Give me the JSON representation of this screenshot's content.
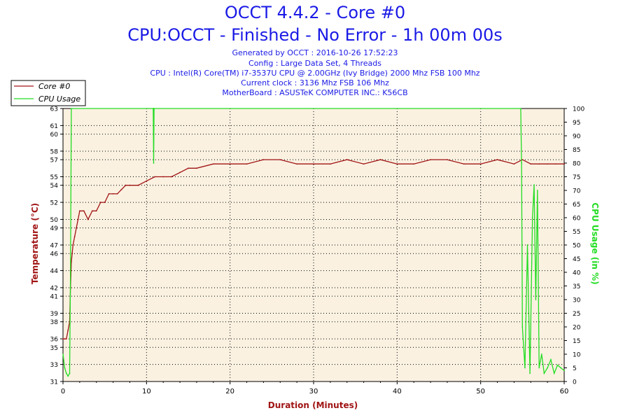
{
  "chart_data": {
    "type": "line",
    "title": "OCCT 4.4.2 - Core #0",
    "subtitle": "CPU:OCCT - Finished - No Error - 1h 00m 00s",
    "info_lines": [
      "Generated by OCCT : 2016-10-26 17:52:23",
      "Config : Large Data Set, 4 Threads",
      "CPU : Intel(R) Core(TM) i7-3537U CPU @ 2.00GHz (Ivy Bridge) 2000 Mhz FSB 100 Mhz",
      "Current clock : 3136 Mhz FSB 106 Mhz",
      "MotherBoard : ASUSTeK COMPUTER INC.: K56CB"
    ],
    "xlabel": "Duration (Minutes)",
    "ylabel": "Temperature (°C)",
    "y2label": "CPU Usage (in %)",
    "xlim": [
      0,
      60
    ],
    "ylim": [
      31,
      63
    ],
    "y2lim": [
      0,
      100
    ],
    "xticks": [
      0,
      10,
      20,
      30,
      40,
      50,
      60
    ],
    "yticks": [
      31,
      33,
      35,
      36,
      38,
      39,
      41,
      42,
      44,
      46,
      47,
      49,
      50,
      52,
      54,
      55,
      57,
      58,
      60,
      61,
      63
    ],
    "y2ticks": [
      0,
      5,
      10,
      15,
      20,
      25,
      30,
      35,
      40,
      45,
      50,
      55,
      60,
      65,
      70,
      75,
      80,
      85,
      90,
      95,
      100
    ],
    "grid": true,
    "legend_position": "top-left",
    "colors": {
      "temperature": "#a01414",
      "cpu_usage": "#22dd22",
      "plot_bg": "#fbf1e1",
      "title": "#1a1ae6",
      "axis_label": "#a01414"
    },
    "series": [
      {
        "name": "Core #0",
        "axis": "left",
        "x": [
          0,
          0.2,
          0.4,
          0.6,
          0.8,
          0.9,
          1.0,
          1.1,
          1.2,
          1.4,
          1.6,
          1.8,
          2.0,
          2.5,
          3.0,
          3.5,
          4.0,
          4.5,
          5.0,
          5.5,
          6.0,
          6.5,
          7.0,
          7.5,
          8.0,
          9.0,
          10.0,
          11.0,
          12.0,
          13.0,
          14.0,
          15.0,
          16.0,
          18.0,
          20.0,
          22.0,
          24.0,
          26.0,
          28.0,
          30.0,
          32.0,
          34.0,
          36.0,
          38.0,
          40.0,
          42.0,
          44.0,
          46.0,
          48.0,
          50.0,
          52.0,
          54.0,
          55.0,
          56.0,
          57.0,
          58.0,
          59.0,
          60.0
        ],
        "y": [
          36,
          36,
          36,
          37,
          38,
          42,
          45,
          46,
          47,
          48,
          49,
          50,
          51,
          51,
          50,
          51,
          51,
          52,
          52,
          53,
          53,
          53,
          53.5,
          54,
          54,
          54,
          54.5,
          55,
          55,
          55,
          55.5,
          56,
          56,
          56.5,
          56.5,
          56.5,
          57,
          57,
          56.5,
          56.5,
          56.5,
          57,
          56.5,
          57,
          56.5,
          56.5,
          57,
          57,
          56.5,
          56.5,
          57,
          56.5,
          57,
          56.5,
          56.5,
          56.5,
          56.5,
          56.5
        ]
      },
      {
        "name": "CPU Usage",
        "axis": "right",
        "x": [
          0,
          0.2,
          0.4,
          0.6,
          0.8,
          0.9,
          1.0,
          10.8,
          10.85,
          10.9,
          54.8,
          54.9,
          55.0,
          55.3,
          55.6,
          55.9,
          56.2,
          56.4,
          56.6,
          56.8,
          57.0,
          57.3,
          57.6,
          58.0,
          58.4,
          58.8,
          59.2,
          59.6,
          60.0
        ],
        "y": [
          10,
          5,
          3,
          2,
          3,
          40,
          100,
          100,
          80,
          100,
          100,
          80,
          20,
          5,
          50,
          3,
          60,
          72,
          30,
          70,
          5,
          10,
          3,
          5,
          8,
          3,
          6,
          5,
          4
        ]
      }
    ]
  }
}
